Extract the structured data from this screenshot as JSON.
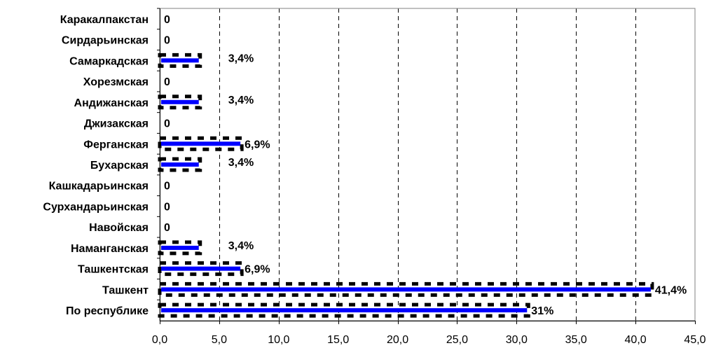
{
  "chart_data": {
    "type": "bar",
    "orientation": "horizontal",
    "categories": [
      "Каракалпакстан",
      "Сирдарьинская",
      "Самаркадская",
      "Хорезмская",
      "Андижанская",
      "Джизакская",
      "Ферганская",
      "Бухарская",
      "Кашкадарьинская",
      "Сурхандарьинская",
      "Навойская",
      "Наманганская",
      "Ташкентская",
      "Ташкент",
      "По республике"
    ],
    "values": [
      0,
      0,
      3.4,
      0,
      3.4,
      0,
      6.9,
      3.4,
      0,
      0,
      0,
      3.4,
      6.9,
      41.4,
      31
    ],
    "data_labels": [
      "0",
      "0",
      "3,4%",
      "0",
      "3,4%",
      "0",
      "6,9%",
      "3,4%",
      "0",
      "0",
      "0",
      "3,4%",
      "6,9%",
      "41,4%",
      "31%"
    ],
    "xlim": [
      0,
      45
    ],
    "x_ticks": [
      "0,0",
      "5,0",
      "10,0",
      "15,0",
      "20,0",
      "25,0",
      "30,0",
      "35,0",
      "40,0",
      "45,0"
    ],
    "title": "",
    "xlabel": "",
    "ylabel": "",
    "grid": "vertical dashed",
    "legend": "none",
    "colors": {
      "bar_fill": "#0000ff",
      "bar_pattern": "#000000",
      "axis": "#000000",
      "grid": "#000000",
      "frame": "#808080"
    }
  }
}
